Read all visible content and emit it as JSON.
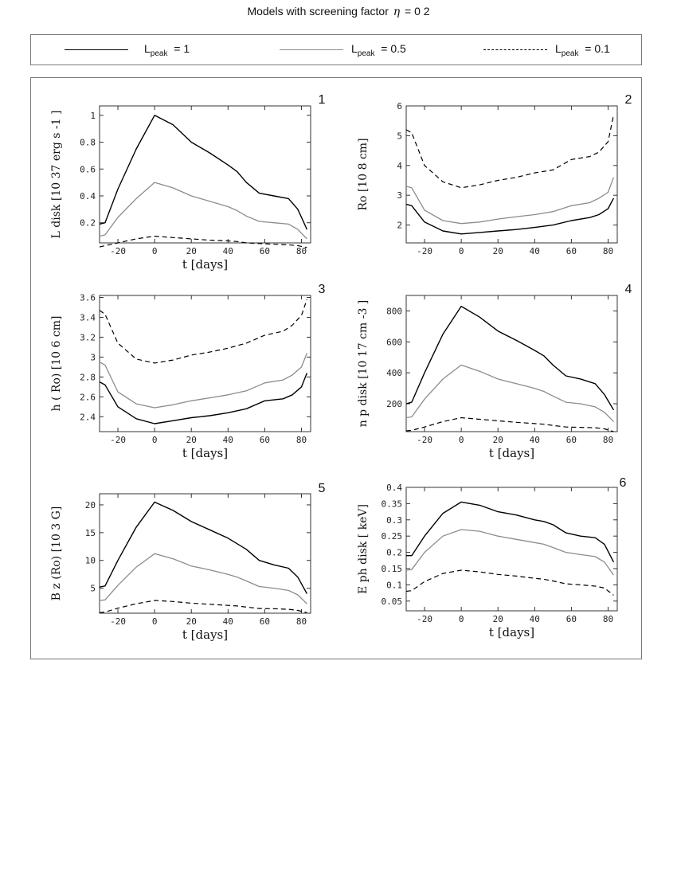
{
  "header": {
    "title_prefix": "Models with screening factor",
    "eta_symbol": "η",
    "title_suffix": "= 0 2"
  },
  "legend": [
    {
      "label": "L",
      "sub": "peak",
      "value": "= 1",
      "color": "#000000",
      "dash": "solid"
    },
    {
      "label": "L",
      "sub": "peak",
      "value": "= 0.5",
      "color": "#8c8c8c",
      "dash": "solid"
    },
    {
      "label": "L",
      "sub": "peak",
      "value": "= 0.1",
      "color": "#000000",
      "dash": "dashed"
    }
  ],
  "chart_data": [
    {
      "type": "line",
      "panel": "1",
      "ylabel": "L disk [10 37 erg s -1 ]",
      "xlabel": "t [days]",
      "xlim": [
        -30,
        85
      ],
      "ylim": [
        0.05,
        1.07
      ],
      "xticks": [
        -20,
        0,
        20,
        40,
        60,
        80
      ],
      "yticks": [
        0.2,
        0.4,
        0.6,
        0.8,
        1
      ],
      "x": [
        -30,
        -27,
        -20,
        -10,
        0,
        10,
        20,
        30,
        40,
        45,
        50,
        57,
        65,
        73,
        78,
        83
      ],
      "series": [
        {
          "name": "Lpeak = 1",
          "values": [
            0.19,
            0.2,
            0.45,
            0.75,
            1.0,
            0.93,
            0.8,
            0.72,
            0.63,
            0.58,
            0.5,
            0.42,
            0.4,
            0.38,
            0.3,
            0.15
          ]
        },
        {
          "name": "Lpeak = 0.5",
          "values": [
            0.1,
            0.11,
            0.24,
            0.38,
            0.5,
            0.46,
            0.4,
            0.36,
            0.32,
            0.29,
            0.25,
            0.21,
            0.2,
            0.19,
            0.15,
            0.08
          ]
        },
        {
          "name": "Lpeak = 0.1",
          "values": [
            0.02,
            0.03,
            0.05,
            0.08,
            0.1,
            0.09,
            0.08,
            0.07,
            0.065,
            0.06,
            0.05,
            0.045,
            0.04,
            0.035,
            0.03,
            0.015
          ]
        }
      ]
    },
    {
      "type": "line",
      "panel": "2",
      "ylabel": "Ro [10 8 cm]",
      "xlabel": "",
      "xlim": [
        -30,
        85
      ],
      "ylim": [
        1.4,
        6
      ],
      "xticks": [
        -20,
        0,
        20,
        40,
        60,
        80
      ],
      "yticks": [
        2,
        3,
        4,
        5,
        6
      ],
      "x": [
        -30,
        -27,
        -20,
        -10,
        0,
        10,
        20,
        30,
        40,
        50,
        60,
        70,
        75,
        80,
        83
      ],
      "series": [
        {
          "name": "Lpeak = 1",
          "values": [
            2.7,
            2.65,
            2.1,
            1.8,
            1.7,
            1.75,
            1.8,
            1.85,
            1.92,
            2.0,
            2.15,
            2.25,
            2.35,
            2.55,
            2.9
          ]
        },
        {
          "name": "Lpeak = 0.5",
          "values": [
            3.3,
            3.25,
            2.5,
            2.15,
            2.05,
            2.1,
            2.2,
            2.28,
            2.35,
            2.45,
            2.65,
            2.75,
            2.9,
            3.1,
            3.6
          ]
        },
        {
          "name": "Lpeak = 0.1",
          "values": [
            5.2,
            5.1,
            4.0,
            3.45,
            3.25,
            3.35,
            3.5,
            3.6,
            3.75,
            3.85,
            4.2,
            4.3,
            4.45,
            4.8,
            5.7
          ]
        }
      ]
    },
    {
      "type": "line",
      "panel": "3",
      "ylabel": "h ( Ro) [10 6 cm]",
      "xlabel": "t [days]",
      "xlim": [
        -30,
        85
      ],
      "ylim": [
        2.25,
        3.62
      ],
      "xticks": [
        -20,
        0,
        20,
        40,
        60,
        80
      ],
      "yticks": [
        2.4,
        2.6,
        2.8,
        3,
        3.2,
        3.4,
        3.6
      ],
      "x": [
        -30,
        -27,
        -20,
        -10,
        0,
        10,
        20,
        30,
        40,
        50,
        60,
        70,
        75,
        80,
        83
      ],
      "series": [
        {
          "name": "Lpeak = 1",
          "values": [
            2.75,
            2.72,
            2.5,
            2.38,
            2.33,
            2.36,
            2.39,
            2.41,
            2.44,
            2.48,
            2.56,
            2.58,
            2.62,
            2.7,
            2.84
          ]
        },
        {
          "name": "Lpeak = 0.5",
          "values": [
            2.95,
            2.92,
            2.65,
            2.53,
            2.49,
            2.52,
            2.56,
            2.59,
            2.62,
            2.66,
            2.74,
            2.77,
            2.82,
            2.9,
            3.04
          ]
        },
        {
          "name": "Lpeak = 0.1",
          "values": [
            3.47,
            3.43,
            3.14,
            2.98,
            2.94,
            2.97,
            3.02,
            3.05,
            3.09,
            3.14,
            3.22,
            3.26,
            3.32,
            3.42,
            3.58
          ]
        }
      ]
    },
    {
      "type": "line",
      "panel": "4",
      "ylabel": "n p disk [10 17 cm -3 ]",
      "xlabel": "t [days]",
      "xlim": [
        -30,
        85
      ],
      "ylim": [
        20,
        900
      ],
      "xticks": [
        -20,
        0,
        20,
        40,
        60,
        80
      ],
      "yticks": [
        200,
        400,
        600,
        800
      ],
      "x": [
        -30,
        -27,
        -20,
        -10,
        0,
        10,
        20,
        30,
        40,
        45,
        50,
        57,
        65,
        73,
        78,
        83
      ],
      "series": [
        {
          "name": "Lpeak = 1",
          "values": [
            200,
            210,
            400,
            650,
            830,
            760,
            670,
            610,
            545,
            510,
            450,
            380,
            360,
            330,
            260,
            160
          ]
        },
        {
          "name": "Lpeak = 0.5",
          "values": [
            110,
            115,
            230,
            360,
            450,
            410,
            360,
            330,
            300,
            280,
            250,
            210,
            200,
            180,
            145,
            85
          ]
        },
        {
          "name": "Lpeak = 0.1",
          "values": [
            25,
            28,
            50,
            85,
            110,
            100,
            90,
            80,
            72,
            68,
            60,
            50,
            48,
            45,
            38,
            20
          ]
        }
      ]
    },
    {
      "type": "line",
      "panel": "5",
      "ylabel": "B z (Ro) [10 3 G]",
      "xlabel": "t [days]",
      "xlim": [
        -30,
        85
      ],
      "ylim": [
        0.5,
        22
      ],
      "xticks": [
        -20,
        0,
        20,
        40,
        60,
        80
      ],
      "yticks": [
        5,
        10,
        15,
        20
      ],
      "x": [
        -30,
        -27,
        -20,
        -10,
        0,
        10,
        20,
        30,
        40,
        45,
        50,
        57,
        65,
        73,
        78,
        83
      ],
      "series": [
        {
          "name": "Lpeak = 1",
          "values": [
            5.2,
            5.4,
            10,
            16,
            20.5,
            19,
            17,
            15.5,
            14,
            13,
            12,
            10,
            9.2,
            8.6,
            7,
            4
          ]
        },
        {
          "name": "Lpeak = 0.5",
          "values": [
            2.8,
            2.9,
            5.5,
            8.8,
            11.2,
            10.3,
            9.0,
            8.3,
            7.5,
            7.0,
            6.3,
            5.3,
            5.0,
            4.6,
            3.8,
            2.2
          ]
        },
        {
          "name": "Lpeak = 0.1",
          "values": [
            0.6,
            0.7,
            1.4,
            2.2,
            2.8,
            2.6,
            2.3,
            2.1,
            1.9,
            1.8,
            1.6,
            1.35,
            1.3,
            1.2,
            1.0,
            0.6
          ]
        }
      ]
    },
    {
      "type": "line",
      "panel": "6",
      "ylabel": "E ph disk [ keV]",
      "xlabel": "t [days]",
      "xlim": [
        -30,
        85
      ],
      "ylim": [
        0.02,
        0.4
      ],
      "xticks": [
        -20,
        0,
        20,
        40,
        60,
        80
      ],
      "yticks": [
        0.05,
        0.1,
        0.15,
        0.2,
        0.25,
        0.3,
        0.35,
        0.4
      ],
      "x": [
        -30,
        -27,
        -20,
        -10,
        0,
        10,
        20,
        30,
        40,
        45,
        50,
        57,
        65,
        73,
        78,
        83
      ],
      "series": [
        {
          "name": "Lpeak = 1",
          "values": [
            0.19,
            0.19,
            0.25,
            0.32,
            0.355,
            0.345,
            0.325,
            0.315,
            0.3,
            0.295,
            0.285,
            0.26,
            0.25,
            0.245,
            0.225,
            0.17
          ]
        },
        {
          "name": "Lpeak = 0.5",
          "values": [
            0.145,
            0.147,
            0.2,
            0.25,
            0.27,
            0.265,
            0.25,
            0.24,
            0.23,
            0.225,
            0.215,
            0.2,
            0.193,
            0.187,
            0.17,
            0.13
          ]
        },
        {
          "name": "Lpeak = 0.1",
          "values": [
            0.08,
            0.082,
            0.11,
            0.135,
            0.145,
            0.14,
            0.132,
            0.127,
            0.12,
            0.117,
            0.112,
            0.103,
            0.1,
            0.096,
            0.09,
            0.068
          ]
        }
      ]
    }
  ]
}
